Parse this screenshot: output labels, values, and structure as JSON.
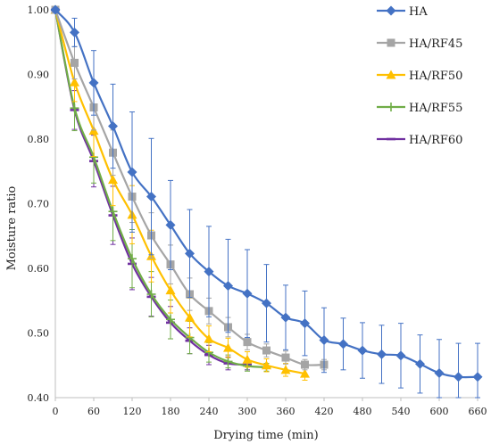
{
  "chart_data": {
    "type": "line",
    "xlabel": "Drying time (min)",
    "ylabel": "Moisture ratio",
    "xlim": [
      0,
      660
    ],
    "ylim": [
      0.4,
      1.0
    ],
    "x_ticks": [
      "0",
      "60",
      "120",
      "180",
      "240",
      "300",
      "360",
      "420",
      "480",
      "540",
      "600",
      "660"
    ],
    "y_ticks": [
      "0.40",
      "0.50",
      "0.60",
      "0.70",
      "0.80",
      "0.90",
      "1.00"
    ],
    "legend_position": "top-right",
    "grid": false,
    "error_bars": true,
    "series": [
      {
        "name": "HA",
        "color": "#4472C4",
        "marker": "diamond",
        "x": [
          0,
          30,
          60,
          90,
          120,
          150,
          180,
          210,
          240,
          270,
          300,
          330,
          360,
          390,
          420,
          450,
          480,
          510,
          540,
          570,
          600,
          630,
          660
        ],
        "y": [
          1.0,
          0.965,
          0.887,
          0.82,
          0.749,
          0.711,
          0.667,
          0.623,
          0.595,
          0.573,
          0.561,
          0.546,
          0.524,
          0.515,
          0.489,
          0.483,
          0.473,
          0.467,
          0.465,
          0.452,
          0.438,
          0.432,
          0.432
        ],
        "err": [
          0.0,
          0.022,
          0.05,
          0.065,
          0.093,
          0.09,
          0.069,
          0.068,
          0.07,
          0.072,
          0.068,
          0.06,
          0.05,
          0.05,
          0.05,
          0.04,
          0.043,
          0.045,
          0.05,
          0.045,
          0.052,
          0.052,
          0.052
        ]
      },
      {
        "name": "HA/RF45",
        "color": "#A5A5A5",
        "marker": "square",
        "x": [
          0,
          30,
          60,
          90,
          120,
          150,
          180,
          210,
          240,
          270,
          300,
          330,
          360,
          390,
          420
        ],
        "y": [
          1.0,
          0.918,
          0.849,
          0.779,
          0.711,
          0.651,
          0.606,
          0.56,
          0.534,
          0.509,
          0.486,
          0.473,
          0.462,
          0.451,
          0.451
        ],
        "err": [
          0.0,
          0.025,
          0.035,
          0.035,
          0.04,
          0.035,
          0.03,
          0.025,
          0.02,
          0.015,
          0.012,
          0.01,
          0.01,
          0.008,
          0.008
        ]
      },
      {
        "name": "HA/RF50",
        "color": "#FFC000",
        "marker": "triangle",
        "x": [
          0,
          30,
          60,
          90,
          120,
          150,
          180,
          210,
          240,
          270,
          300,
          330,
          360,
          390
        ],
        "y": [
          1.0,
          0.888,
          0.813,
          0.737,
          0.683,
          0.619,
          0.566,
          0.524,
          0.491,
          0.477,
          0.459,
          0.45,
          0.443,
          0.437
        ],
        "err": [
          0.0,
          0.03,
          0.04,
          0.04,
          0.045,
          0.04,
          0.035,
          0.03,
          0.02,
          0.015,
          0.012,
          0.01,
          0.01,
          0.01
        ]
      },
      {
        "name": "HA/RF55",
        "color": "#70AD47",
        "marker": "plus",
        "x": [
          0,
          30,
          60,
          90,
          120,
          150,
          180,
          210,
          240,
          270,
          300,
          330
        ],
        "y": [
          1.0,
          0.848,
          0.772,
          0.688,
          0.615,
          0.56,
          0.521,
          0.493,
          0.47,
          0.456,
          0.449,
          0.447
        ],
        "err": [
          0.0,
          0.035,
          0.04,
          0.045,
          0.045,
          0.035,
          0.03,
          0.025,
          0.015,
          0.01,
          0.008,
          0.006
        ]
      },
      {
        "name": "HA/RF60",
        "color": "#7030A0",
        "marker": "dash",
        "x": [
          0,
          30,
          60,
          90,
          120,
          150,
          180,
          210,
          240,
          270,
          300
        ],
        "y": [
          1.0,
          0.845,
          0.766,
          0.682,
          0.607,
          0.556,
          0.516,
          0.488,
          0.466,
          0.453,
          0.451
        ],
        "err": [
          0.0,
          0.03,
          0.04,
          0.045,
          0.04,
          0.03,
          0.025,
          0.02,
          0.015,
          0.01,
          0.008
        ]
      }
    ]
  }
}
